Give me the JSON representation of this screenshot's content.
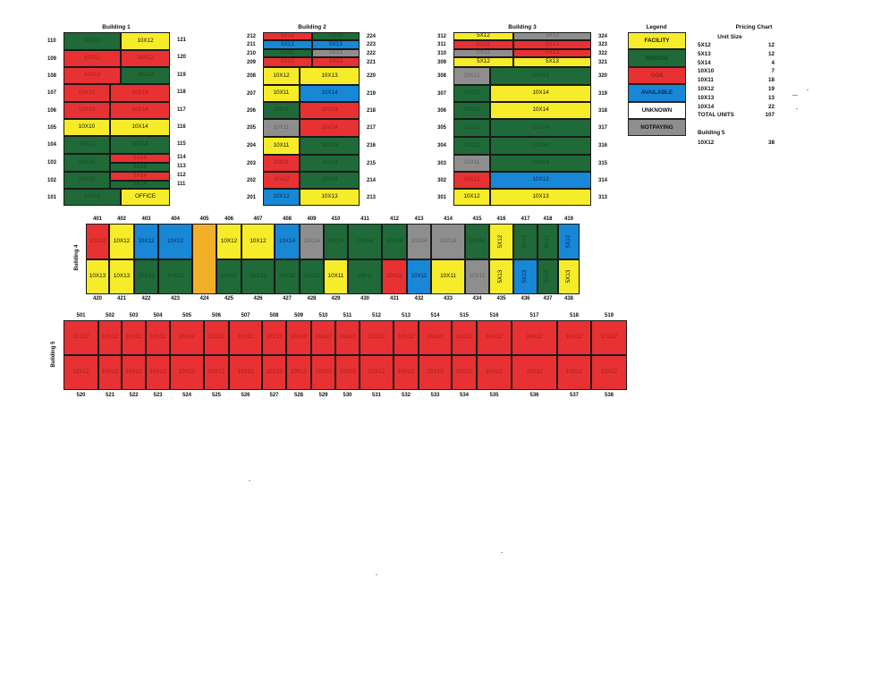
{
  "colors": {
    "green": "#1f6a38",
    "yellow": "#f6ec2a",
    "red": "#e73133",
    "blue": "#1787d6",
    "gray": "#8e8e8e",
    "white": "#ffffff",
    "orange": "#f1b028"
  },
  "titles": {
    "b1": "Building 1",
    "b2": "Building 2",
    "b3": "Building 3",
    "b4": "Building 4",
    "b5": "Building 5",
    "legend": "Legend",
    "pricing": "Pricing Chart"
  },
  "legend": [
    {
      "label": "FACILITY",
      "color": "yellow"
    },
    {
      "label": "RENTED",
      "color": "green"
    },
    {
      "label": "OOS",
      "color": "red"
    },
    {
      "label": "AVAILABLE",
      "color": "blue"
    },
    {
      "label": "UNKNOWN",
      "color": "white"
    },
    {
      "label": "NOTPAYING",
      "color": "gray"
    }
  ],
  "pricing": {
    "subtitle": "Unit Size",
    "rows": [
      {
        "size": "5X12",
        "count": "12"
      },
      {
        "size": "5X13",
        "count": "12"
      },
      {
        "size": "5X14",
        "count": "4"
      },
      {
        "size": "10X10",
        "count": "7"
      },
      {
        "size": "10X11",
        "count": "18"
      },
      {
        "size": "10X12",
        "count": "19"
      },
      {
        "size": "10X13",
        "count": "13"
      },
      {
        "size": "10X14",
        "count": "22"
      },
      {
        "size": "TOTAL UNITS",
        "count": "107"
      }
    ],
    "b5_heading": "Building 5",
    "b5_rows": [
      {
        "size": "10X12",
        "count": "38"
      }
    ]
  },
  "building1": {
    "left_numbers": [
      "110",
      "109",
      "108",
      "107",
      "106",
      "105",
      "104",
      "103",
      "102",
      "101"
    ],
    "right_numbers": [
      "121",
      "120",
      "119",
      "118",
      "117",
      "116",
      "115",
      "114",
      "113",
      "112",
      "111"
    ],
    "units": [
      {
        "label": "10X12",
        "color": "green"
      },
      {
        "label": "10X12",
        "color": "yellow"
      },
      {
        "label": "10X12",
        "color": "red"
      },
      {
        "label": "10X12",
        "color": "red"
      },
      {
        "label": "10X12",
        "color": "red"
      },
      {
        "label": "10X12",
        "color": "green"
      },
      {
        "label": "10X10",
        "color": "red"
      },
      {
        "label": "10X14",
        "color": "red"
      },
      {
        "label": "10X10",
        "color": "red"
      },
      {
        "label": "10X14",
        "color": "red"
      },
      {
        "label": "10X10",
        "color": "yellow"
      },
      {
        "label": "10X14",
        "color": "yellow"
      },
      {
        "label": "10X10",
        "color": "green"
      },
      {
        "label": "10X14",
        "color": "green"
      },
      {
        "label": "10X10",
        "color": "green"
      },
      {
        "label": "5X14",
        "color": "red"
      },
      {
        "label": "5X14",
        "color": "green"
      },
      {
        "label": "10X10",
        "color": "green"
      },
      {
        "label": "5X14",
        "color": "red"
      },
      {
        "label": "5X14",
        "color": "green"
      },
      {
        "label": "10X10",
        "color": "green"
      },
      {
        "label": "OFFICE",
        "color": "yellow"
      }
    ]
  },
  "building2": {
    "left_numbers": [
      "212",
      "211",
      "210",
      "209",
      "208",
      "207",
      "206",
      "205",
      "204",
      "203",
      "202",
      "201"
    ],
    "right_numbers": [
      "224",
      "223",
      "222",
      "221",
      "220",
      "219",
      "218",
      "217",
      "216",
      "215",
      "214",
      "213"
    ],
    "units": [
      {
        "label": "5X12",
        "color": "red"
      },
      {
        "label": "5X13",
        "color": "green"
      },
      {
        "label": "5X12",
        "color": "blue"
      },
      {
        "label": "5X13",
        "color": "blue"
      },
      {
        "label": "5X12",
        "color": "green"
      },
      {
        "label": "5X13",
        "color": "gray"
      },
      {
        "label": "5X12",
        "color": "red"
      },
      {
        "label": "5X13",
        "color": "red"
      },
      {
        "label": "10X12",
        "color": "yellow"
      },
      {
        "label": "10X13",
        "color": "yellow"
      },
      {
        "label": "10X11",
        "color": "yellow"
      },
      {
        "label": "10X14",
        "color": "blue"
      },
      {
        "label": "10X11",
        "color": "green"
      },
      {
        "label": "10X14",
        "color": "red"
      },
      {
        "label": "10X11",
        "color": "gray"
      },
      {
        "label": "10X14",
        "color": "red"
      },
      {
        "label": "10X11",
        "color": "yellow"
      },
      {
        "label": "10X14",
        "color": "green"
      },
      {
        "label": "10X11",
        "color": "red"
      },
      {
        "label": "10X14",
        "color": "green"
      },
      {
        "label": "10X12",
        "color": "red"
      },
      {
        "label": "10X13",
        "color": "green"
      },
      {
        "label": "10X12",
        "color": "blue"
      },
      {
        "label": "10X13",
        "color": "yellow"
      }
    ]
  },
  "building3": {
    "left_numbers": [
      "312",
      "311",
      "310",
      "309",
      "308",
      "307",
      "306",
      "305",
      "304",
      "303",
      "302",
      "301"
    ],
    "right_numbers": [
      "324",
      "323",
      "322",
      "321",
      "320",
      "319",
      "318",
      "317",
      "316",
      "315",
      "314",
      "313"
    ],
    "units": [
      {
        "label": "5X12",
        "color": "yellow"
      },
      {
        "label": "5X13",
        "color": "gray"
      },
      {
        "label": "5X12",
        "color": "red"
      },
      {
        "label": "5X13",
        "color": "red"
      },
      {
        "label": "5X12",
        "color": "gray"
      },
      {
        "label": "5X13",
        "color": "red"
      },
      {
        "label": "5X12",
        "color": "yellow"
      },
      {
        "label": "5X13",
        "color": "yellow"
      },
      {
        "label": "10X12",
        "color": "gray"
      },
      {
        "label": "10X13",
        "color": "green"
      },
      {
        "label": "10X11",
        "color": "green"
      },
      {
        "label": "10X14",
        "color": "yellow"
      },
      {
        "label": "10X11",
        "color": "green"
      },
      {
        "label": "10X14",
        "color": "yellow"
      },
      {
        "label": "10X11",
        "color": "green"
      },
      {
        "label": "10X14",
        "color": "green"
      },
      {
        "label": "10X11",
        "color": "green"
      },
      {
        "label": "10X14",
        "color": "green"
      },
      {
        "label": "10X11",
        "color": "gray"
      },
      {
        "label": "10X14",
        "color": "green"
      },
      {
        "label": "10X12",
        "color": "red"
      },
      {
        "label": "10X13",
        "color": "blue"
      },
      {
        "label": "10X12",
        "color": "yellow"
      },
      {
        "label": "10X13",
        "color": "yellow"
      }
    ]
  },
  "building4": {
    "top_numbers": [
      "401",
      "402",
      "403",
      "404",
      "405",
      "406",
      "407",
      "408",
      "409",
      "410",
      "411",
      "412",
      "413",
      "414",
      "415",
      "416",
      "417",
      "418",
      "419"
    ],
    "bottom_numbers": [
      "420",
      "421",
      "422",
      "423",
      "424",
      "425",
      "426",
      "427",
      "428",
      "429",
      "430",
      "431",
      "432",
      "433",
      "434",
      "435",
      "436",
      "437",
      "438"
    ],
    "office_color": "orange",
    "top_units": [
      {
        "label": "10X12",
        "color": "red"
      },
      {
        "label": "10X12",
        "color": "yellow"
      },
      {
        "label": "10X12",
        "color": "blue"
      },
      {
        "label": "10X12",
        "color": "blue"
      },
      {
        "label": "10X12",
        "color": "yellow"
      },
      {
        "label": "10X12",
        "color": "yellow"
      },
      {
        "label": "10X14",
        "color": "blue"
      },
      {
        "label": "10X14",
        "color": "gray"
      },
      {
        "label": "10X14",
        "color": "green"
      },
      {
        "label": "10X14",
        "color": "green"
      },
      {
        "label": "10X14",
        "color": "green"
      },
      {
        "label": "10X14",
        "color": "gray"
      },
      {
        "label": "10X14",
        "color": "gray"
      },
      {
        "label": "10X14",
        "color": "green"
      },
      {
        "label": "5X12",
        "color": "yellow"
      },
      {
        "label": "5X12",
        "color": "green"
      },
      {
        "label": "5X12",
        "color": "green"
      },
      {
        "label": "5X12",
        "color": "blue"
      }
    ],
    "bottom_units": [
      {
        "label": "10X13",
        "color": "yellow"
      },
      {
        "label": "10X13",
        "color": "yellow"
      },
      {
        "label": "10X13",
        "color": "green"
      },
      {
        "label": "10X13",
        "color": "green"
      },
      {
        "label": "10X13",
        "color": "green"
      },
      {
        "label": "10X13",
        "color": "green"
      },
      {
        "label": "10X11",
        "color": "green"
      },
      {
        "label": "10X11",
        "color": "green"
      },
      {
        "label": "10X11",
        "color": "yellow"
      },
      {
        "label": "10X11",
        "color": "green"
      },
      {
        "label": "10X11",
        "color": "red"
      },
      {
        "label": "10X11",
        "color": "blue"
      },
      {
        "label": "10X11",
        "color": "yellow"
      },
      {
        "label": "10X11",
        "color": "gray"
      },
      {
        "label": "5X13",
        "color": "yellow"
      },
      {
        "label": "5X13",
        "color": "blue"
      },
      {
        "label": "5X13",
        "color": "green"
      },
      {
        "label": "5X13",
        "color": "yellow"
      }
    ]
  },
  "building5": {
    "top_numbers": [
      "501",
      "502",
      "503",
      "504",
      "505",
      "506",
      "507",
      "508",
      "509",
      "510",
      "511",
      "512",
      "513",
      "514",
      "515",
      "516",
      "517",
      "518",
      "519"
    ],
    "bottom_numbers": [
      "520",
      "521",
      "522",
      "523",
      "524",
      "525",
      "526",
      "527",
      "528",
      "529",
      "530",
      "531",
      "532",
      "533",
      "534",
      "535",
      "536",
      "537",
      "538"
    ],
    "unit_label": "10X12",
    "unit_color": "red"
  }
}
